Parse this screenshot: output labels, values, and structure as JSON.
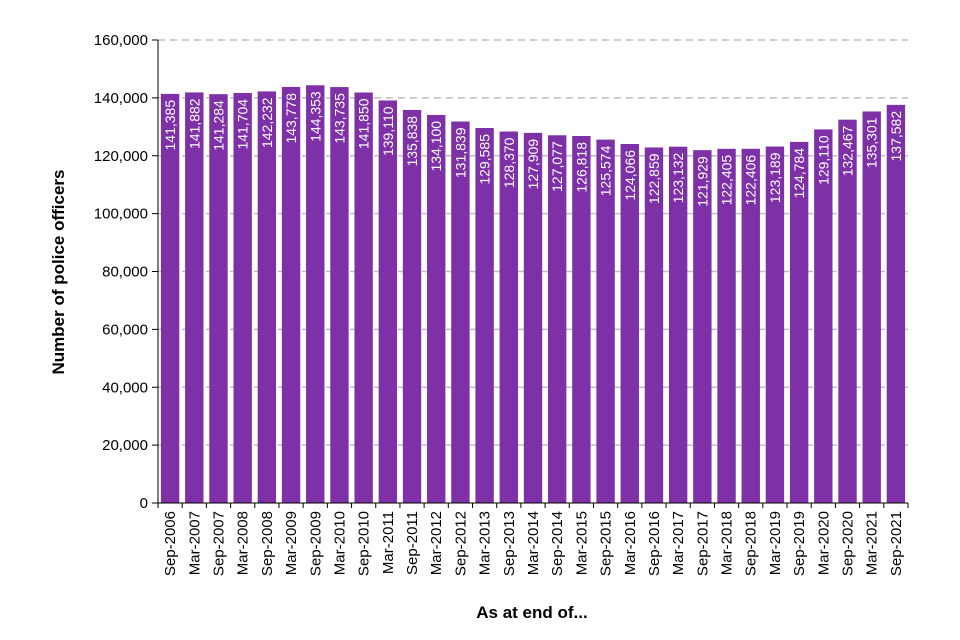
{
  "chart_data": {
    "type": "bar",
    "title": "",
    "xlabel": "As at end of...",
    "ylabel": "Number of police officers",
    "ylim": [
      0,
      160000
    ],
    "yticks": [
      0,
      20000,
      40000,
      60000,
      80000,
      100000,
      120000,
      140000,
      160000
    ],
    "ytick_labels": [
      "0",
      "20,000",
      "40,000",
      "60,000",
      "80,000",
      "100,000",
      "120,000",
      "140,000",
      "160,000"
    ],
    "grid": "horizontal dashed",
    "categories": [
      "Sep-2006",
      "Mar-2007",
      "Sep-2007",
      "Mar-2008",
      "Sep-2008",
      "Mar-2009",
      "Sep-2009",
      "Mar-2010",
      "Sep-2010",
      "Mar-2011",
      "Sep-2011",
      "Mar-2012",
      "Sep-2012",
      "Mar-2013",
      "Sep-2013",
      "Mar-2014",
      "Sep-2014",
      "Mar-2015",
      "Sep-2015",
      "Mar-2016",
      "Sep-2016",
      "Mar-2017",
      "Sep-2017",
      "Mar-2018",
      "Sep-2018",
      "Mar-2019",
      "Sep-2019",
      "Mar-2020",
      "Sep-2020",
      "Mar-2021",
      "Sep-2021"
    ],
    "values": [
      141385,
      141882,
      141284,
      141704,
      142232,
      143778,
      144353,
      143735,
      141850,
      139110,
      135838,
      134100,
      131839,
      129585,
      128370,
      127909,
      127077,
      126818,
      125574,
      124066,
      122859,
      123132,
      121929,
      122405,
      122406,
      123189,
      124784,
      129110,
      132467,
      135301,
      137582
    ],
    "value_labels": [
      "141,385",
      "141,882",
      "141,284",
      "141,704",
      "142,232",
      "143,778",
      "144,353",
      "143,735",
      "141,850",
      "139,110",
      "135,838",
      "134,100",
      "131,839",
      "129,585",
      "128,370",
      "127,909",
      "127,077",
      "126,818",
      "125,574",
      "124,066",
      "122,859",
      "123,132",
      "121,929",
      "122,405",
      "122,406",
      "123,189",
      "124,784",
      "129,110",
      "132,467",
      "135,301",
      "137,582"
    ],
    "bar_color": "#7E31A6",
    "grid_color": "#BFBFBF"
  }
}
